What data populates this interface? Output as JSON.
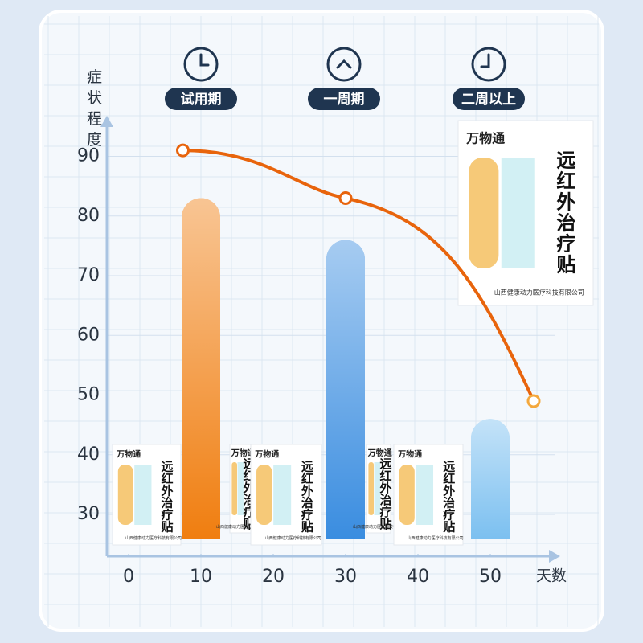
{
  "chart_data": {
    "type": "bar_line",
    "ylabel": "症状程度",
    "xlabel": "天数",
    "phases": [
      "试用期",
      "一周期",
      "二周以上"
    ],
    "xlim": [
      -3,
      59
    ],
    "xticks": [
      0,
      10,
      20,
      30,
      40,
      50
    ],
    "ylim": [
      23,
      96
    ],
    "yticks": [
      30,
      40,
      50,
      60,
      70,
      80,
      90
    ],
    "grid": true,
    "bars": {
      "x": [
        10,
        30,
        50
      ],
      "values": [
        83,
        76,
        46
      ],
      "colors": [
        "#f07e10",
        "#3a8de0",
        "#7cc0f0"
      ]
    },
    "line": {
      "x": [
        7.5,
        30,
        56
      ],
      "values": [
        91,
        83,
        49
      ],
      "color": "#e8640c"
    },
    "product": {
      "brand": "万物通",
      "name": "远红外治疗贴",
      "company": "山西健康动力医疗科技有限公司"
    }
  }
}
